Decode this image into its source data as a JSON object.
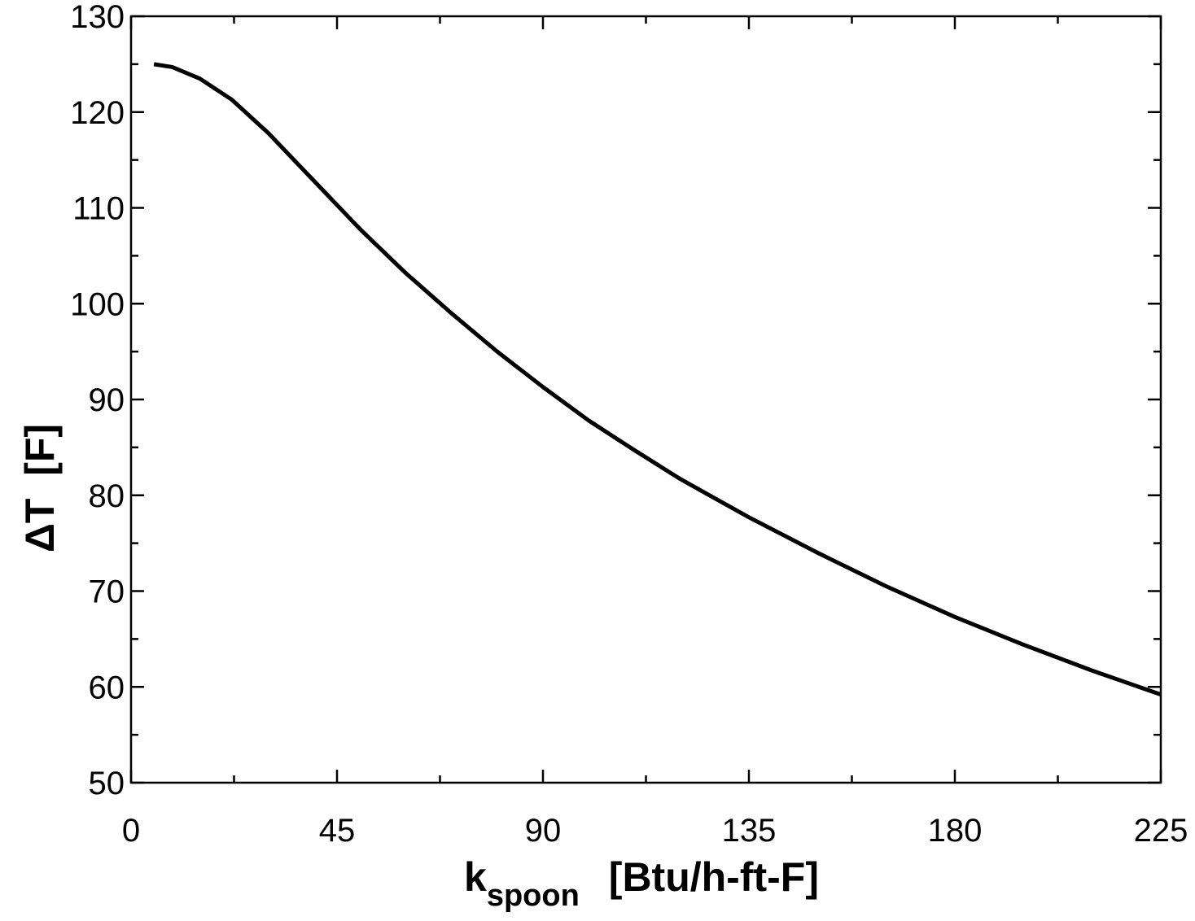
{
  "chart_data": {
    "type": "line",
    "ylabel": "ΔT  [F]",
    "xlabel": {
      "main": "k",
      "sub": "spoon",
      "unit": "[Btu/h-ft-F]"
    },
    "x": [
      5,
      9,
      15,
      22,
      30,
      40,
      50,
      60,
      70,
      80,
      90,
      100,
      110,
      120,
      135,
      150,
      165,
      180,
      195,
      210,
      225
    ],
    "series": [
      {
        "color": "#000000",
        "values": [
          125,
          124.7,
          123.5,
          121.3,
          117.8,
          112.8,
          107.8,
          103.2,
          99,
          95,
          91.3,
          87.8,
          84.7,
          81.7,
          77.7,
          74,
          70.5,
          67.3,
          64.4,
          61.7,
          59.2
        ]
      }
    ],
    "xlim": [
      0,
      225
    ],
    "xticks": [
      0,
      45,
      90,
      135,
      180,
      225
    ],
    "xminorticks": [
      22.5,
      67.5,
      112.5,
      157.5,
      202.5
    ],
    "ylim": [
      50,
      130
    ],
    "yticks": [
      50,
      60,
      70,
      80,
      90,
      100,
      110,
      120,
      130
    ],
    "yminorticks": [
      55,
      65,
      75,
      85,
      95,
      105,
      115,
      125
    ],
    "grid": false
  }
}
